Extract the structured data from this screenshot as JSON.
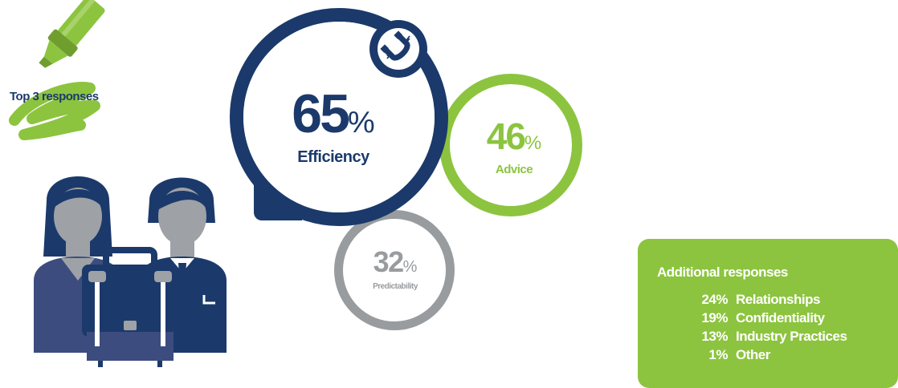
{
  "colors": {
    "navy": "#1b3a6b",
    "green": "#8cc43f",
    "grey": "#999c9f"
  },
  "header": {
    "label": "Top 3 responses"
  },
  "top_responses": [
    {
      "value": "65",
      "unit": "%",
      "label": "Efficiency",
      "icon": "magnet-icon"
    },
    {
      "value": "46",
      "unit": "%",
      "label": "Advice"
    },
    {
      "value": "32",
      "unit": "%",
      "label": "Predictability"
    }
  ],
  "additional": {
    "title": "Additional responses",
    "items": [
      {
        "pct": "24%",
        "label": "Relationships"
      },
      {
        "pct": "19%",
        "label": "Confidentiality"
      },
      {
        "pct": "13%",
        "label": "Industry Practices"
      },
      {
        "pct": "1%",
        "label": "Other"
      }
    ]
  },
  "icons": [
    "highlighter-icon",
    "people-illustration",
    "briefcase-icon",
    "magnet-icon"
  ]
}
